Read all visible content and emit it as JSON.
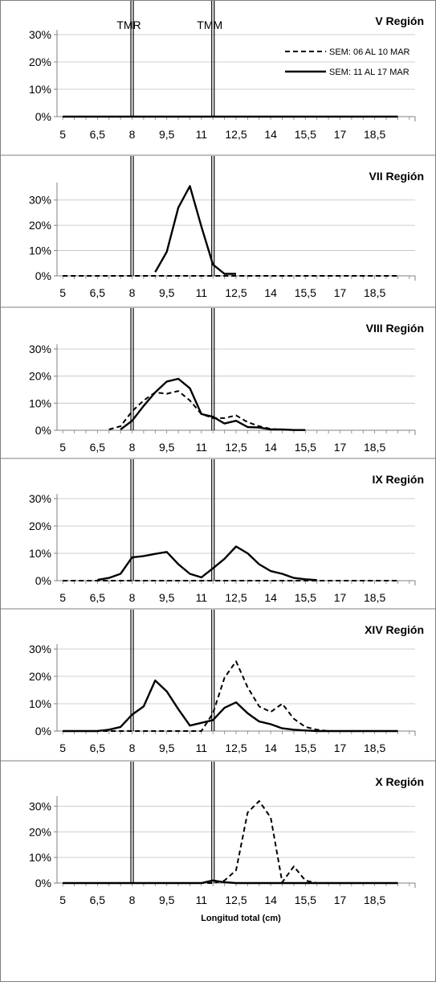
{
  "figure": {
    "xlabel": "Longitud total (cm)",
    "reference_lines": [
      {
        "label": "TMR",
        "x": 8
      },
      {
        "label": "TMM",
        "x": 11.5
      }
    ],
    "legend": [
      "SEM: 06 AL 10 MAR",
      "SEM: 11 AL 17 MAR"
    ]
  },
  "chart_data": [
    {
      "type": "line",
      "title": "V Región",
      "xlabel": "",
      "ylabel": "",
      "x": [
        5,
        5.5,
        6,
        6.5,
        7,
        7.5,
        8,
        8.5,
        9,
        9.5,
        10,
        10.5,
        11,
        11.5,
        12,
        12.5,
        13,
        13.5,
        14,
        14.5,
        15,
        15.5,
        16,
        16.5,
        17,
        17.5,
        18,
        18.5,
        19,
        19.5
      ],
      "x_tick_labels": [
        "5",
        "6,5",
        "8",
        "9,5",
        "11",
        "12,5",
        "14",
        "15,5",
        "17",
        "18,5"
      ],
      "xlim": [
        4.75,
        20.25
      ],
      "ylim": [
        0,
        30
      ],
      "y_tick_labels": [
        "0%",
        "10%",
        "20%",
        "30%"
      ],
      "grid": true,
      "legend_position": "top-right",
      "series": [
        {
          "name": "SEM: 06 AL 10 MAR",
          "style": "dashed",
          "values": [
            0,
            0,
            0,
            0,
            0,
            0,
            0,
            0,
            0,
            0,
            0,
            0,
            0,
            0,
            0,
            0,
            0,
            0,
            0,
            0,
            0,
            0,
            0,
            0,
            0,
            0,
            0,
            0,
            0,
            0
          ]
        },
        {
          "name": "SEM: 11 AL 17 MAR",
          "style": "solid",
          "values": [
            0,
            0,
            0,
            0,
            0,
            0,
            0,
            0,
            0,
            0,
            0,
            0,
            0,
            0,
            0,
            0,
            0,
            0,
            0,
            0,
            0,
            0,
            0,
            0,
            0,
            0,
            0,
            0,
            0,
            0
          ]
        }
      ]
    },
    {
      "type": "line",
      "title": "VII Región",
      "xlabel": "",
      "ylabel": "",
      "x": [
        5,
        5.5,
        6,
        6.5,
        7,
        7.5,
        8,
        8.5,
        9,
        9.5,
        10,
        10.5,
        11,
        11.5,
        12,
        12.5,
        13,
        13.5,
        14,
        14.5,
        15,
        15.5,
        16,
        16.5,
        17,
        17.5,
        18,
        18.5,
        19,
        19.5
      ],
      "x_tick_labels": [
        "5",
        "6,5",
        "8",
        "9,5",
        "11",
        "12,5",
        "14",
        "15,5",
        "17",
        "18,5"
      ],
      "xlim": [
        4.75,
        20.25
      ],
      "ylim": [
        0,
        35
      ],
      "y_tick_labels": [
        "0%",
        "10%",
        "20%",
        "30%"
      ],
      "grid": true,
      "series": [
        {
          "name": "SEM: 06 AL 10 MAR",
          "style": "dashed",
          "values": [
            0,
            0,
            0,
            0,
            0,
            0,
            0,
            0,
            0,
            0,
            0,
            0,
            0,
            0,
            0,
            0,
            0,
            0,
            0,
            0,
            0,
            0,
            0,
            0,
            0,
            0,
            0,
            0,
            0,
            0
          ]
        },
        {
          "name": "SEM: 11 AL 17 MAR",
          "style": "solid",
          "values": [
            null,
            null,
            null,
            null,
            null,
            null,
            null,
            null,
            1.5,
            9.5,
            27,
            35.5,
            19.5,
            4.5,
            0.8,
            0.8,
            null,
            null,
            null,
            null,
            null,
            null,
            null,
            null,
            null,
            null,
            null,
            null,
            null,
            null
          ]
        }
      ]
    },
    {
      "type": "line",
      "title": "VIII Región",
      "xlabel": "",
      "ylabel": "",
      "x": [
        5,
        5.5,
        6,
        6.5,
        7,
        7.5,
        8,
        8.5,
        9,
        9.5,
        10,
        10.5,
        11,
        11.5,
        12,
        12.5,
        13,
        13.5,
        14,
        14.5,
        15,
        15.5,
        16,
        16.5,
        17,
        17.5,
        18,
        18.5,
        19,
        19.5
      ],
      "x_tick_labels": [
        "5",
        "6,5",
        "8",
        "9,5",
        "11",
        "12,5",
        "14",
        "15,5",
        "17",
        "18,5"
      ],
      "xlim": [
        4.75,
        20.25
      ],
      "ylim": [
        0,
        30
      ],
      "y_tick_labels": [
        "0%",
        "10%",
        "20%",
        "30%"
      ],
      "grid": true,
      "series": [
        {
          "name": "SEM: 06 AL 10 MAR",
          "style": "dashed",
          "values": [
            null,
            null,
            null,
            null,
            0.3,
            1.5,
            7,
            11,
            14,
            13.5,
            14.5,
            11,
            6,
            4.5,
            4.5,
            5.5,
            3,
            1.5,
            0.5,
            0.2,
            0.1,
            null,
            null,
            null,
            null,
            null,
            null,
            null,
            null,
            null
          ]
        },
        {
          "name": "SEM: 11 AL 17 MAR",
          "style": "solid",
          "values": [
            null,
            null,
            null,
            null,
            null,
            0.3,
            3.5,
            9,
            14,
            18,
            19,
            15.5,
            6,
            5,
            2.5,
            3.5,
            1.2,
            1,
            0.3,
            0.3,
            0.1,
            0.1,
            null,
            null,
            null,
            null,
            null,
            null,
            null,
            null
          ]
        }
      ]
    },
    {
      "type": "line",
      "title": "IX Región",
      "xlabel": "",
      "ylabel": "",
      "x": [
        5,
        5.5,
        6,
        6.5,
        7,
        7.5,
        8,
        8.5,
        9,
        9.5,
        10,
        10.5,
        11,
        11.5,
        12,
        12.5,
        13,
        13.5,
        14,
        14.5,
        15,
        15.5,
        16,
        16.5,
        17,
        17.5,
        18,
        18.5,
        19,
        19.5
      ],
      "x_tick_labels": [
        "5",
        "6,5",
        "8",
        "9,5",
        "11",
        "12,5",
        "14",
        "15,5",
        "17",
        "18,5"
      ],
      "xlim": [
        4.75,
        20.25
      ],
      "ylim": [
        0,
        30
      ],
      "y_tick_labels": [
        "0%",
        "10%",
        "20%",
        "30%"
      ],
      "grid": true,
      "series": [
        {
          "name": "SEM: 06 AL 10 MAR",
          "style": "dashed",
          "values": [
            0,
            0,
            0,
            0,
            0,
            0,
            0,
            0,
            0,
            0,
            0,
            0,
            0,
            0,
            0,
            0,
            0,
            0,
            0,
            0,
            0,
            0,
            0,
            0,
            0,
            0,
            0,
            0,
            0,
            0
          ]
        },
        {
          "name": "SEM: 11 AL 17 MAR",
          "style": "solid",
          "values": [
            null,
            null,
            null,
            0.3,
            1,
            2.5,
            8.5,
            9,
            9.8,
            10.5,
            6,
            2.5,
            1.2,
            4.5,
            8,
            12.5,
            10,
            6,
            3.5,
            2.5,
            1,
            0.5,
            0.2,
            null,
            null,
            null,
            null,
            null,
            null,
            null
          ]
        }
      ]
    },
    {
      "type": "line",
      "title": "XIV Región",
      "xlabel": "",
      "ylabel": "",
      "x": [
        5,
        5.5,
        6,
        6.5,
        7,
        7.5,
        8,
        8.5,
        9,
        9.5,
        10,
        10.5,
        11,
        11.5,
        12,
        12.5,
        13,
        13.5,
        14,
        14.5,
        15,
        15.5,
        16,
        16.5,
        17,
        17.5,
        18,
        18.5,
        19,
        19.5
      ],
      "x_tick_labels": [
        "5",
        "6,5",
        "8",
        "9,5",
        "11",
        "12,5",
        "14",
        "15,5",
        "17",
        "18,5"
      ],
      "xlim": [
        4.75,
        20.25
      ],
      "ylim": [
        0,
        30
      ],
      "y_tick_labels": [
        "0%",
        "10%",
        "20%",
        "30%"
      ],
      "grid": true,
      "series": [
        {
          "name": "SEM: 06 AL 10 MAR",
          "style": "dashed",
          "values": [
            0,
            0,
            0,
            0,
            0,
            0,
            0,
            0,
            0,
            0,
            0,
            0,
            0,
            6.5,
            19.5,
            25.5,
            16,
            9,
            7,
            10,
            4.5,
            1.5,
            0.5,
            0,
            0,
            0,
            0,
            0,
            0,
            0
          ]
        },
        {
          "name": "SEM: 11 AL 17 MAR",
          "style": "solid",
          "values": [
            0,
            0,
            0,
            0,
            0.5,
            1.5,
            6,
            9,
            18.5,
            14.5,
            8,
            2,
            3,
            4,
            8.5,
            10.5,
            6.5,
            3.5,
            2.5,
            1,
            0.5,
            0.2,
            0,
            0,
            0,
            0,
            0,
            0,
            0,
            0
          ]
        }
      ]
    },
    {
      "type": "line",
      "title": "X Región",
      "xlabel": "Longitud total (cm)",
      "ylabel": "",
      "x": [
        5,
        5.5,
        6,
        6.5,
        7,
        7.5,
        8,
        8.5,
        9,
        9.5,
        10,
        10.5,
        11,
        11.5,
        12,
        12.5,
        13,
        13.5,
        14,
        14.5,
        15,
        15.5,
        16,
        16.5,
        17,
        17.5,
        18,
        18.5,
        19,
        19.5
      ],
      "x_tick_labels": [
        "5",
        "6,5",
        "8",
        "9,5",
        "11",
        "12,5",
        "14",
        "15,5",
        "17",
        "18,5"
      ],
      "xlim": [
        4.75,
        20.25
      ],
      "ylim": [
        0,
        32
      ],
      "y_tick_labels": [
        "0%",
        "10%",
        "20%",
        "30%"
      ],
      "grid": true,
      "series": [
        {
          "name": "SEM: 06 AL 10 MAR",
          "style": "dashed",
          "values": [
            0,
            0,
            0,
            0,
            0,
            0,
            0,
            0,
            0,
            0,
            0,
            0,
            0,
            0,
            1,
            5,
            27.5,
            32,
            25.5,
            0.3,
            6.5,
            1,
            0,
            0,
            0,
            0,
            0,
            0,
            0,
            0
          ]
        },
        {
          "name": "SEM: 11 AL 17 MAR",
          "style": "solid",
          "values": [
            0,
            0,
            0,
            0,
            0,
            0,
            0,
            0,
            0,
            0,
            0,
            0,
            0,
            1,
            0.3,
            0,
            0,
            0,
            0,
            0,
            0,
            0,
            0,
            0,
            0,
            0,
            0,
            0,
            0,
            0
          ]
        }
      ]
    }
  ]
}
